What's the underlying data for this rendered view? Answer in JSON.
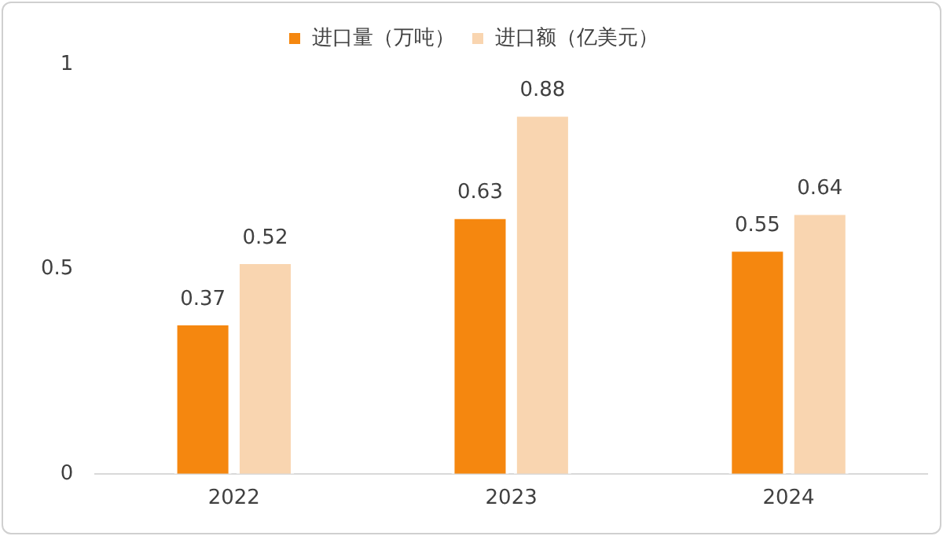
{
  "chart_data": {
    "type": "bar",
    "categories": [
      "2022",
      "2023",
      "2024"
    ],
    "series": [
      {
        "name": "进口量（万吨）",
        "color": "#f5870f",
        "values": [
          0.37,
          0.63,
          0.55
        ]
      },
      {
        "name": "进口额（亿美元）",
        "color": "#f9d5b0",
        "values": [
          0.52,
          0.88,
          0.64
        ]
      }
    ],
    "ylim": [
      0,
      1
    ],
    "yticks": [
      0,
      0.5,
      1
    ],
    "grid": false,
    "legend": "top",
    "data_labels": true
  }
}
